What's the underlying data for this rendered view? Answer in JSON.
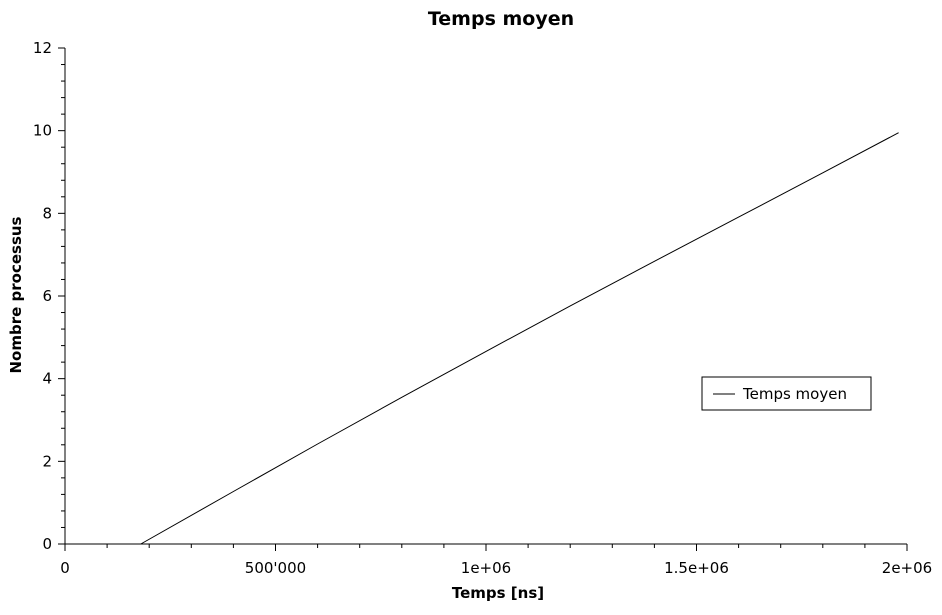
{
  "chart_data": {
    "type": "line",
    "title": "Temps moyen",
    "xlabel": "Temps [ns]",
    "ylabel": "Nombre processus",
    "xlim": [
      0,
      2000000
    ],
    "ylim": [
      0,
      12
    ],
    "x_ticks": [
      {
        "value": 0,
        "label": "0"
      },
      {
        "value": 500000,
        "label": "500'000"
      },
      {
        "value": 1000000,
        "label": "1e+06"
      },
      {
        "value": 1500000,
        "label": "1.5e+06"
      },
      {
        "value": 2000000,
        "label": "2e+06"
      }
    ],
    "y_ticks": [
      {
        "value": 0,
        "label": "0"
      },
      {
        "value": 2,
        "label": "2"
      },
      {
        "value": 4,
        "label": "4"
      },
      {
        "value": 6,
        "label": "6"
      },
      {
        "value": 8,
        "label": "8"
      },
      {
        "value": 10,
        "label": "10"
      },
      {
        "value": 12,
        "label": "12"
      }
    ],
    "x_minor_step": 100000,
    "y_minor_step": 0.4,
    "grid": false,
    "legend_position": "right",
    "series": [
      {
        "name": "Temps moyen",
        "color": "#000000",
        "x": [
          180000,
          400000,
          600000,
          800000,
          1000000,
          1200000,
          1400000,
          1600000,
          1800000,
          1980000
        ],
        "y": [
          0,
          1.27,
          2.42,
          3.55,
          4.66,
          5.76,
          6.84,
          7.91,
          8.98,
          9.95
        ]
      }
    ]
  }
}
